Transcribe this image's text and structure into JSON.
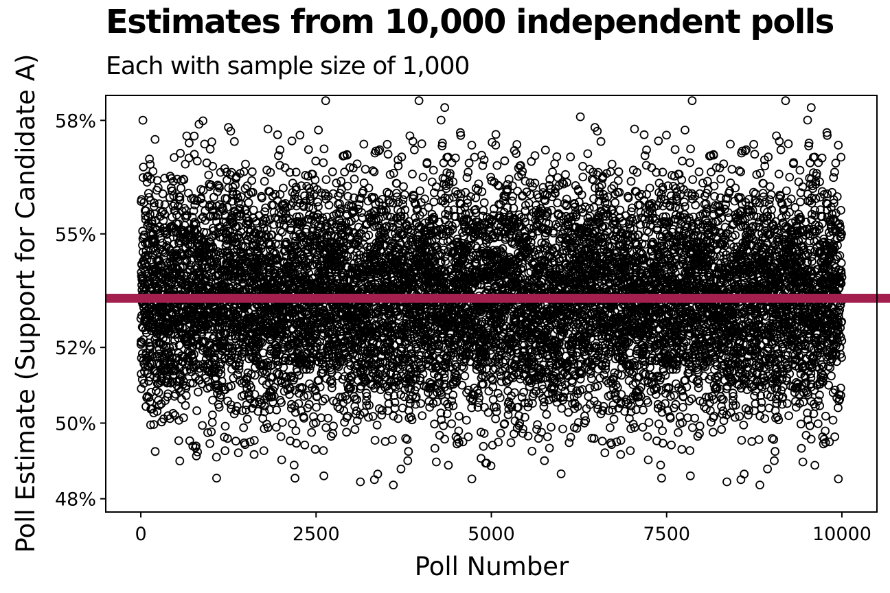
{
  "chart_data": {
    "type": "scatter",
    "title": "Estimates from 10,000 independent polls",
    "subtitle": "Each with sample size of 1,000",
    "xlabel": "Poll Number",
    "ylabel": "Poll Estimate (Support for Candidate A)",
    "x_ticks": [
      0,
      2500,
      5000,
      7500,
      10000
    ],
    "x_tick_labels": [
      "0",
      "2500",
      "5000",
      "7500",
      "10000"
    ],
    "y_ticks": [
      0.48,
      0.5,
      0.52,
      0.55,
      0.58
    ],
    "y_tick_labels": [
      "48%",
      "50%",
      "52%",
      "55%",
      "58%"
    ],
    "xlim": [
      -500,
      10500
    ],
    "ylim": [
      0.4765,
      0.5866
    ],
    "n_polls": 10000,
    "sample_size": 1000,
    "true_value": 0.533,
    "grid": false,
    "legend": "none",
    "colors": {
      "points": "#000000",
      "reference_line": "#A3204E"
    },
    "marker": "hollow-circle",
    "series": [
      {
        "x_start": 1,
        "x_end": 10000,
        "mean": 0.533,
        "sd": 0.0158,
        "min": 0.482,
        "max": 0.5855
      }
    ],
    "reference_lines": [
      {
        "orientation": "horizontal",
        "y": 0.533
      }
    ]
  }
}
